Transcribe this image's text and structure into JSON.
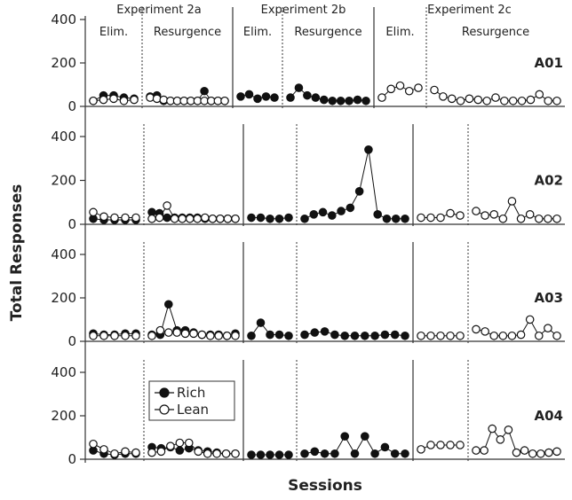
{
  "chart_data": {
    "type": "line",
    "ylabel": "Total Responses",
    "xlabel": "Sessions",
    "ylim": [
      0,
      400
    ],
    "yticks": [
      0,
      200,
      400
    ],
    "experiments": [
      {
        "label": "Experiment 2a",
        "phases": [
          "Elim.",
          "Resurgence"
        ]
      },
      {
        "label": "Experiment 2b",
        "phases": [
          "Elim.",
          "Resurgence"
        ]
      },
      {
        "label": "Experiment 2c",
        "phases": [
          "Elim.",
          "Resurgence"
        ]
      }
    ],
    "legend": {
      "placement": "inside-panel-A04",
      "entries": [
        {
          "name": "Rich",
          "marker": "filled-circle"
        },
        {
          "name": "Lean",
          "marker": "open-circle"
        }
      ]
    },
    "panels": [
      {
        "subject": "A01",
        "experiments": [
          {
            "rich": {
              "elim": [
                5,
                30,
                30,
                20,
                15
              ],
              "res": [
                25,
                30,
                5,
                5,
                5,
                5,
                5,
                5,
                50,
                5,
                5,
                5
              ]
            },
            "lean": {
              "elim": [
                5,
                10,
                15,
                5,
                10
              ],
              "res": [
                20,
                15,
                10,
                5,
                5,
                5,
                5,
                5,
                5,
                5,
                5,
                5
              ]
            }
          },
          {
            "rich": {
              "elim": [
                25,
                35,
                15,
                25,
                20
              ],
              "res": [
                20,
                65,
                30,
                20,
                10,
                5,
                5,
                5,
                10,
                5
              ]
            },
            "lean": null
          },
          {
            "rich": null,
            "lean": {
              "elim": [
                20,
                60,
                75,
                50,
                65
              ],
              "res": [
                55,
                25,
                15,
                5,
                15,
                10,
                5,
                20,
                5,
                5,
                5,
                10,
                35,
                5,
                5
              ]
            }
          }
        ]
      },
      {
        "subject": "A02",
        "experiments": [
          {
            "rich": {
              "elim": [
                5,
                0,
                0,
                0,
                0
              ],
              "res": [
                35,
                30,
                10,
                10,
                10,
                10,
                10,
                5,
                5,
                5,
                5,
                5
              ]
            },
            "lean": {
              "elim": [
                35,
                15,
                10,
                10,
                10
              ],
              "res": [
                5,
                10,
                65,
                5,
                5,
                5,
                5,
                10,
                5,
                5,
                5,
                5
              ]
            }
          },
          {
            "rich": {
              "elim": [
                10,
                10,
                5,
                5,
                10
              ],
              "res": [
                5,
                25,
                35,
                20,
                40,
                55,
                130,
                320,
                25,
                5,
                5,
                5
              ]
            },
            "lean": null
          },
          {
            "rich": null,
            "lean": {
              "elim": [
                10,
                10,
                10,
                30,
                20
              ],
              "res": [
                40,
                20,
                25,
                5,
                85,
                5,
                25,
                5,
                5,
                5
              ]
            }
          }
        ]
      },
      {
        "subject": "A03",
        "experiments": [
          {
            "rich": {
              "elim": [
                15,
                10,
                10,
                15,
                15
              ],
              "res": [
                10,
                10,
                150,
                30,
                30,
                20,
                10,
                10,
                10,
                5,
                15
              ]
            },
            "lean": {
              "elim": [
                5,
                5,
                5,
                5,
                5
              ],
              "res": [
                5,
                30,
                20,
                20,
                15,
                15,
                10,
                5,
                5,
                5,
                5
              ]
            }
          },
          {
            "rich": {
              "elim": [
                5,
                65,
                10,
                10,
                5
              ],
              "res": [
                10,
                20,
                25,
                10,
                5,
                5,
                5,
                5,
                10,
                10,
                5
              ]
            },
            "lean": null
          },
          {
            "rich": null,
            "lean": {
              "elim": [
                5,
                5,
                5,
                5,
                5
              ],
              "res": [
                35,
                25,
                5,
                5,
                5,
                10,
                80,
                5,
                40,
                5
              ]
            }
          }
        ]
      },
      {
        "subject": "A04",
        "experiments": [
          {
            "rich": {
              "elim": [
                20,
                5,
                0,
                5,
                5
              ],
              "res": [
                35,
                30,
                35,
                20,
                30,
                20,
                15,
                10,
                5,
                5
              ]
            },
            "lean": {
              "elim": [
                50,
                25,
                5,
                15,
                10
              ],
              "res": [
                10,
                15,
                40,
                55,
                55,
                15,
                5,
                5,
                5,
                5
              ]
            }
          },
          {
            "rich": {
              "elim": [
                0,
                0,
                0,
                0,
                0
              ],
              "res": [
                5,
                15,
                5,
                5,
                85,
                5,
                85,
                5,
                35,
                5,
                5
              ]
            },
            "lean": null
          },
          {
            "rich": null,
            "lean": {
              "elim": [
                25,
                45,
                45,
                45,
                45
              ],
              "res": [
                20,
                20,
                120,
                70,
                115,
                10,
                20,
                5,
                5,
                10,
                15
              ]
            }
          }
        ]
      }
    ]
  }
}
